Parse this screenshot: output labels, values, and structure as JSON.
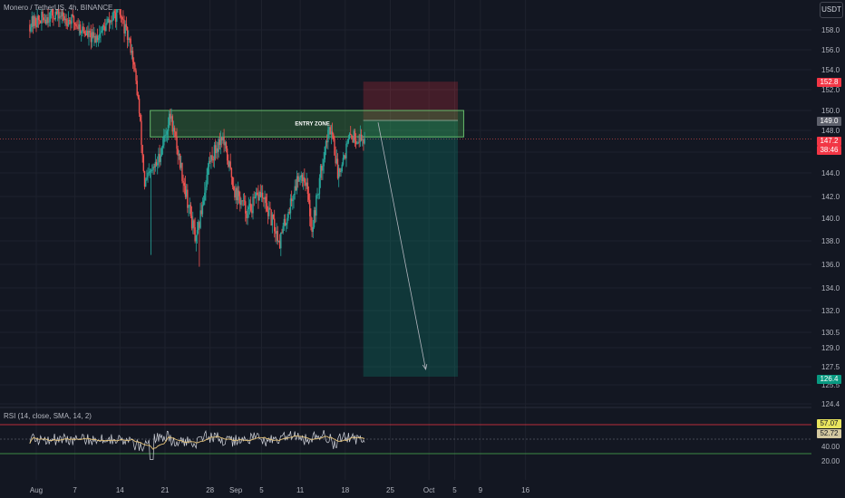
{
  "header": {
    "symbol_line": "Monero / TetherUS, 4h, BINANCE",
    "currency": "USDT"
  },
  "entry_zone_label": "ENTRY ZONE",
  "rsi_panel": {
    "title": "RSI (14, close, SMA, 14, 2)",
    "rsi_value": "57.07",
    "sma_value": "52.72"
  },
  "price_badges": {
    "stop": "152.8",
    "entry": "149.0",
    "last_price": "147.2",
    "countdown": "38:46",
    "target": "126.4"
  },
  "colors": {
    "background": "#131722",
    "up_candle": "#26a69a",
    "down_candle": "#ef5350",
    "entry_zone": "#4caf50",
    "stop_zone": "#f23645",
    "target_zone": "#089981",
    "rsi_line": "#d1d4dc",
    "rsi_sma": "#e6c47a"
  },
  "chart_data": {
    "type": "candlestick",
    "symbol": "Monero / TetherUS, 4h, BINANCE",
    "y_axis": {
      "ticks": [
        "158.0",
        "156.0",
        "154.0",
        "152.0",
        "150.0",
        "148.0",
        "146.0",
        "144.0",
        "142.0",
        "140.0",
        "138.0",
        "136.0",
        "134.0",
        "132.0",
        "130.5",
        "129.0",
        "127.5",
        "125.5",
        "124.4"
      ],
      "range": [
        124,
        160
      ]
    },
    "x_axis": {
      "ticks": [
        "Aug",
        "7",
        "14",
        "21",
        "28",
        "Sep",
        "5",
        "11",
        "18",
        "25",
        "Oct",
        "5",
        "9",
        "16"
      ]
    },
    "price_path_anchors": [
      [
        "Jul 31",
        158.5
      ],
      [
        "Aug 4",
        159.6
      ],
      [
        "Aug 7",
        158.8
      ],
      [
        "Aug 10",
        157.0
      ],
      [
        "Aug 14",
        159.8
      ],
      [
        "Aug 16",
        156.0
      ],
      [
        "Aug 17",
        151.0
      ],
      [
        "Aug 18",
        143.0
      ],
      [
        "Aug 20",
        145.0
      ],
      [
        "Aug 22",
        149.5
      ],
      [
        "Aug 24",
        143.5
      ],
      [
        "Aug 26",
        137.8
      ],
      [
        "Aug 28",
        145.0
      ],
      [
        "Aug 30",
        147.5
      ],
      [
        "Sep 1",
        142.5
      ],
      [
        "Sep 3",
        140.5
      ],
      [
        "Sep 5",
        142.3
      ],
      [
        "Sep 8",
        138.0
      ],
      [
        "Sep 11",
        144.0
      ],
      [
        "Sep 12",
        143.5
      ],
      [
        "Sep 13",
        139.0
      ],
      [
        "Sep 15",
        146.5
      ],
      [
        "Sep 16",
        148.5
      ],
      [
        "Sep 17",
        144.0
      ],
      [
        "Sep 19",
        147.5
      ],
      [
        "Sep 21",
        147.2
      ]
    ],
    "entry_zone": {
      "label": "ENTRY ZONE",
      "top": 150.0,
      "bottom": 147.4
    },
    "short_position": {
      "stop": 152.8,
      "entry": 149.0,
      "target": 126.4
    },
    "last_price": 147.2,
    "rsi": {
      "name": "RSI (14, close, SMA, 14, 2)",
      "value": 57.07,
      "sma": 52.72,
      "upper_band": 70,
      "lower_band": 30,
      "ticks": [
        "60.00",
        "40.00",
        "20.00"
      ]
    }
  }
}
